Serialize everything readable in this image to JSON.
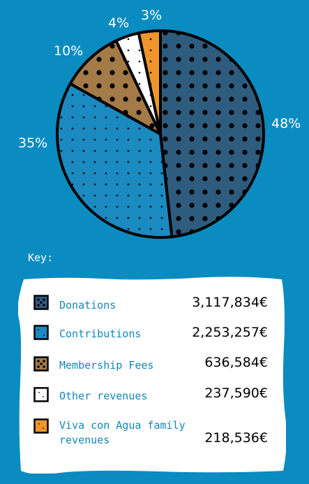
{
  "chart_data": {
    "type": "pie",
    "slices": [
      {
        "label": "Donations",
        "percent_label": "48%",
        "value": 3117834,
        "value_text": "3,117,834€",
        "color": "#2e5c7f",
        "pattern": "dots-dark"
      },
      {
        "label": "Contributions",
        "percent_label": "35%",
        "value": 2253257,
        "value_text": "2,253,257€",
        "color": "#1a8ac0",
        "pattern": "dots-small"
      },
      {
        "label": "Membership Fees",
        "percent_label": "10%",
        "value": 636584,
        "value_text": "636,584€",
        "color": "#a47a46",
        "pattern": "dots-dark"
      },
      {
        "label": "Other revenues",
        "percent_label": "4%",
        "value": 237590,
        "value_text": "237,590€",
        "color": "#ffffff",
        "pattern": "dots-small"
      },
      {
        "label": "Viva con Agua family revenues",
        "percent_label": "3%",
        "value": 218536,
        "value_text": "218,536€",
        "color": "#f0952c",
        "pattern": "dots-small"
      }
    ],
    "legend_title": "Key:",
    "legend_placement": "bottom"
  },
  "colors": {
    "background": "#0a8cc0",
    "panel": "#ffffff",
    "legend_text": "#1287b8"
  }
}
